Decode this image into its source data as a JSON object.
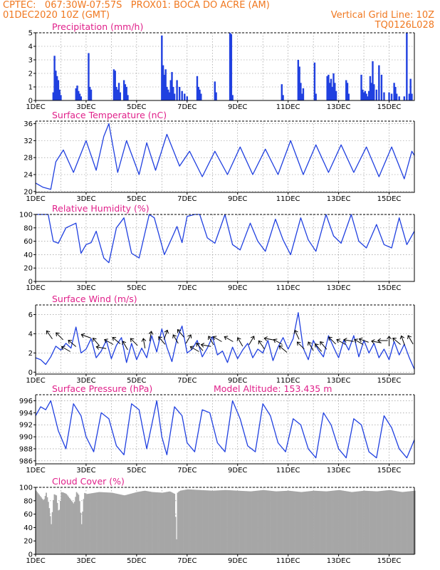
{
  "header": {
    "line1_left": "CPTEC:   067:30W-07:57S   PROX01: BOCA DO ACRE (AM)",
    "line2_left": "01DEC2020 10Z (GMT)",
    "line2_right": "Vertical Grid Line: 10Z",
    "line3_right": "TQ0126L028"
  },
  "colors": {
    "header": "#f07820",
    "title": "#e0208a",
    "series": "#2040e0",
    "cloud": "#a6a6a6",
    "arrow": "#000000"
  },
  "x_axis": {
    "labels": [
      "1DEC",
      "3DEC",
      "5DEC",
      "7DEC",
      "9DEC",
      "11DEC",
      "13DEC",
      "15DEC"
    ],
    "label_days": [
      1,
      3,
      5,
      7,
      9,
      11,
      13,
      15
    ],
    "start_day": 1,
    "end_day": 16
  },
  "chart_data": [
    {
      "type": "bar",
      "title": "Precipitation (mm/h)",
      "ylim": [
        0,
        5
      ],
      "yticks": [
        0,
        1,
        2,
        3,
        4,
        5
      ],
      "x": [
        1.7,
        1.75,
        1.8,
        1.85,
        1.9,
        1.95,
        2.0,
        2.6,
        2.65,
        2.7,
        2.75,
        2.8,
        3.1,
        3.15,
        3.2,
        4.1,
        4.15,
        4.2,
        4.25,
        4.3,
        4.35,
        4.5,
        4.55,
        4.6,
        4.65,
        6.0,
        6.05,
        6.1,
        6.15,
        6.2,
        6.25,
        6.3,
        6.35,
        6.4,
        6.45,
        6.5,
        6.6,
        6.7,
        6.8,
        6.9,
        7.0,
        7.4,
        7.45,
        7.5,
        7.55,
        8.1,
        8.15,
        8.7,
        8.75,
        8.8,
        10.75,
        10.8,
        11.4,
        11.45,
        11.5,
        11.55,
        11.6,
        12.05,
        12.1,
        12.55,
        12.6,
        12.65,
        12.7,
        12.75,
        12.8,
        12.85,
        12.9,
        13.3,
        13.35,
        13.4,
        13.9,
        13.95,
        14.0,
        14.05,
        14.1,
        14.15,
        14.2,
        14.25,
        14.3,
        14.35,
        14.4,
        14.5,
        14.6,
        14.7,
        14.8,
        15.0,
        15.1,
        15.2,
        15.25,
        15.3,
        15.4,
        15.6,
        15.7,
        15.8,
        15.85,
        15.9
      ],
      "values": [
        0.6,
        3.3,
        2.2,
        1.8,
        1.5,
        0.8,
        0.4,
        0.9,
        1.1,
        0.7,
        0.5,
        0.3,
        3.5,
        1.0,
        0.8,
        2.3,
        2.2,
        1.0,
        0.8,
        1.3,
        0.6,
        1.5,
        1.2,
        1.0,
        0.4,
        4.8,
        2.6,
        1.9,
        2.3,
        1.0,
        0.8,
        0.6,
        1.5,
        2.1,
        1.0,
        0.5,
        1.5,
        1.0,
        0.7,
        0.5,
        0.3,
        1.8,
        1.0,
        0.8,
        0.5,
        1.4,
        0.6,
        5.0,
        4.9,
        0.4,
        1.2,
        0.4,
        3.0,
        2.5,
        1.3,
        0.5,
        0.9,
        2.8,
        0.5,
        1.8,
        1.9,
        1.3,
        1.6,
        1.0,
        2.0,
        1.3,
        0.7,
        1.5,
        1.3,
        0.5,
        1.9,
        0.8,
        0.6,
        0.7,
        0.5,
        0.3,
        0.7,
        1.8,
        1.3,
        2.9,
        1.2,
        0.8,
        2.6,
        1.9,
        0.6,
        0.6,
        0.5,
        1.3,
        1.0,
        0.5,
        0.3,
        0.3,
        5.0,
        0.5,
        1.6,
        0.5
      ]
    },
    {
      "type": "line",
      "title": "Surface Temperature (nC)",
      "ylim": [
        19.8,
        36.6
      ],
      "yticks": [
        20,
        24,
        28,
        32,
        36
      ],
      "x": [
        1.0,
        1.3,
        1.6,
        1.8,
        2.1,
        2.5,
        3.0,
        3.4,
        3.7,
        3.9,
        4.25,
        4.6,
        5.1,
        5.4,
        5.75,
        6.2,
        6.5,
        6.7,
        7.1,
        7.6,
        8.1,
        8.6,
        9.1,
        9.6,
        10.1,
        10.6,
        11.1,
        11.6,
        12.1,
        12.6,
        13.1,
        13.6,
        14.1,
        14.6,
        15.1,
        15.6,
        15.9,
        16.0
      ],
      "values": [
        22.0,
        21.0,
        20.5,
        27.0,
        29.8,
        24.5,
        32.0,
        25.0,
        33.0,
        36.0,
        24.5,
        32.0,
        24.0,
        31.5,
        25.0,
        33.5,
        29.0,
        26.0,
        29.5,
        23.5,
        29.5,
        24.0,
        30.5,
        24.0,
        30.0,
        24.0,
        32.0,
        24.0,
        31.0,
        24.5,
        31.0,
        24.5,
        30.5,
        23.5,
        30.5,
        23.0,
        29.5,
        28.5
      ]
    },
    {
      "type": "line",
      "title": "Relative Humidity (%)",
      "ylim": [
        0,
        100
      ],
      "yticks": [
        0,
        20,
        40,
        60,
        80,
        100
      ],
      "x": [
        1.0,
        1.5,
        1.7,
        1.9,
        2.2,
        2.6,
        2.8,
        3.0,
        3.2,
        3.4,
        3.7,
        3.9,
        4.2,
        4.5,
        4.8,
        5.1,
        5.5,
        5.7,
        6.1,
        6.4,
        6.6,
        6.8,
        7.0,
        7.3,
        7.5,
        7.8,
        8.1,
        8.5,
        8.8,
        9.1,
        9.5,
        9.8,
        10.1,
        10.5,
        10.8,
        11.1,
        11.5,
        11.8,
        12.1,
        12.5,
        12.8,
        13.1,
        13.5,
        13.8,
        14.1,
        14.5,
        14.8,
        15.1,
        15.4,
        15.7,
        16.0
      ],
      "values": [
        100,
        100,
        60,
        57,
        80,
        87,
        42,
        55,
        58,
        75,
        35,
        28,
        80,
        95,
        42,
        35,
        100,
        95,
        40,
        65,
        82,
        58,
        97,
        100,
        100,
        65,
        57,
        100,
        55,
        47,
        87,
        60,
        45,
        93,
        62,
        40,
        95,
        62,
        45,
        100,
        68,
        57,
        100,
        60,
        50,
        85,
        55,
        50,
        95,
        55,
        75
      ]
    },
    {
      "type": "line",
      "title": "Surface Wind (m/s)",
      "ylim": [
        -0.2,
        7
      ],
      "yticks": [
        0,
        2,
        4,
        6
      ],
      "x": [
        1.0,
        1.2,
        1.4,
        1.6,
        1.8,
        2.0,
        2.2,
        2.4,
        2.6,
        2.8,
        3.0,
        3.2,
        3.4,
        3.6,
        3.8,
        4.0,
        4.2,
        4.4,
        4.6,
        4.8,
        5.0,
        5.2,
        5.4,
        5.6,
        5.8,
        6.0,
        6.2,
        6.4,
        6.6,
        6.8,
        7.0,
        7.2,
        7.4,
        7.6,
        7.8,
        8.0,
        8.2,
        8.4,
        8.6,
        8.8,
        9.0,
        9.2,
        9.4,
        9.6,
        9.8,
        10.0,
        10.2,
        10.4,
        10.6,
        10.8,
        11.0,
        11.2,
        11.4,
        11.6,
        11.8,
        12.0,
        12.2,
        12.4,
        12.6,
        12.8,
        13.0,
        13.2,
        13.4,
        13.6,
        13.8,
        14.0,
        14.2,
        14.4,
        14.6,
        14.8,
        15.0,
        15.2,
        15.4,
        15.6,
        15.8,
        16.0
      ],
      "values": [
        1.5,
        1.3,
        0.8,
        1.6,
        2.7,
        2.3,
        3.0,
        2.5,
        4.7,
        2.0,
        2.4,
        3.5,
        1.5,
        2.2,
        3.3,
        1.4,
        2.8,
        3.6,
        1.0,
        3.0,
        1.3,
        2.5,
        1.5,
        3.8,
        2.1,
        4.5,
        2.6,
        1.1,
        3.5,
        4.8,
        2.0,
        2.4,
        3.3,
        1.6,
        2.5,
        3.7,
        1.8,
        2.2,
        1.0,
        2.6,
        1.4,
        2.3,
        3.0,
        1.5,
        2.4,
        2.0,
        3.3,
        1.2,
        2.6,
        3.6,
        2.4,
        3.5,
        6.2,
        2.5,
        1.3,
        3.3,
        2.3,
        1.6,
        3.8,
        2.6,
        1.5,
        3.3,
        2.3,
        3.8,
        1.6,
        3.3,
        2.0,
        3.0,
        1.5,
        2.4,
        1.3,
        3.2,
        1.8,
        2.9,
        1.5,
        0.3
      ]
    },
    {
      "type": "line",
      "title": "Surface Pressure (hPa)",
      "annotation": "Model Altitude: 153.435 m",
      "ylim": [
        985.5,
        997
      ],
      "yticks": [
        986,
        988,
        990,
        992,
        994,
        996
      ],
      "x": [
        1.0,
        1.2,
        1.4,
        1.6,
        1.9,
        2.2,
        2.5,
        2.8,
        3.0,
        3.3,
        3.6,
        3.9,
        4.2,
        4.5,
        4.8,
        5.1,
        5.4,
        5.8,
        6.0,
        6.2,
        6.5,
        6.8,
        7.0,
        7.3,
        7.6,
        7.9,
        8.2,
        8.5,
        8.8,
        9.1,
        9.4,
        9.7,
        10.0,
        10.3,
        10.6,
        10.9,
        11.2,
        11.5,
        11.8,
        12.1,
        12.4,
        12.7,
        13.0,
        13.3,
        13.6,
        13.9,
        14.2,
        14.5,
        14.8,
        15.1,
        15.4,
        15.7,
        16.0
      ],
      "values": [
        993.5,
        995.0,
        994.5,
        996.0,
        991.0,
        988.0,
        995.5,
        993.5,
        990.0,
        987.5,
        994.0,
        993.0,
        988.5,
        987.0,
        995.5,
        994.5,
        988.0,
        996.0,
        990.0,
        987.0,
        995.0,
        993.5,
        989.0,
        987.5,
        994.5,
        994.0,
        989.0,
        987.5,
        996.0,
        993.0,
        988.5,
        987.5,
        995.5,
        993.5,
        989.0,
        987.5,
        993.0,
        992.0,
        988.0,
        986.5,
        994.0,
        992.0,
        988.0,
        986.5,
        993.0,
        992.0,
        987.5,
        986.5,
        993.5,
        991.5,
        988.0,
        986.5,
        989.5
      ]
    },
    {
      "type": "area",
      "title": "Cloud Cover (%)",
      "ylim": [
        0,
        100
      ],
      "yticks": [
        0,
        20,
        40,
        60,
        80,
        100
      ],
      "x": [
        1.0,
        1.1,
        1.2,
        1.3,
        1.4,
        1.5,
        1.6,
        1.7,
        1.8,
        1.9,
        2.0,
        2.1,
        2.2,
        2.3,
        2.4,
        2.5,
        2.6,
        2.7,
        2.8,
        2.9,
        3.0,
        3.5,
        4.0,
        4.5,
        5.0,
        5.3,
        5.6,
        6.0,
        6.3,
        6.5,
        6.55,
        6.6,
        6.7,
        7.0,
        7.5,
        8.0,
        8.5,
        9.0,
        9.5,
        10.0,
        10.5,
        11.0,
        11.5,
        12.0,
        12.5,
        13.0,
        13.5,
        14.0,
        14.5,
        15.0,
        15.5,
        16.0
      ],
      "values": [
        95,
        90,
        85,
        80,
        92,
        75,
        45,
        90,
        88,
        60,
        93,
        92,
        90,
        85,
        80,
        75,
        93,
        88,
        45,
        92,
        90,
        93,
        92,
        88,
        93,
        95,
        93,
        92,
        94,
        90,
        5,
        92,
        95,
        97,
        96,
        95,
        96,
        95,
        94,
        96,
        94,
        95,
        93,
        95,
        94,
        96,
        93,
        95,
        94,
        96,
        93,
        95
      ]
    }
  ]
}
